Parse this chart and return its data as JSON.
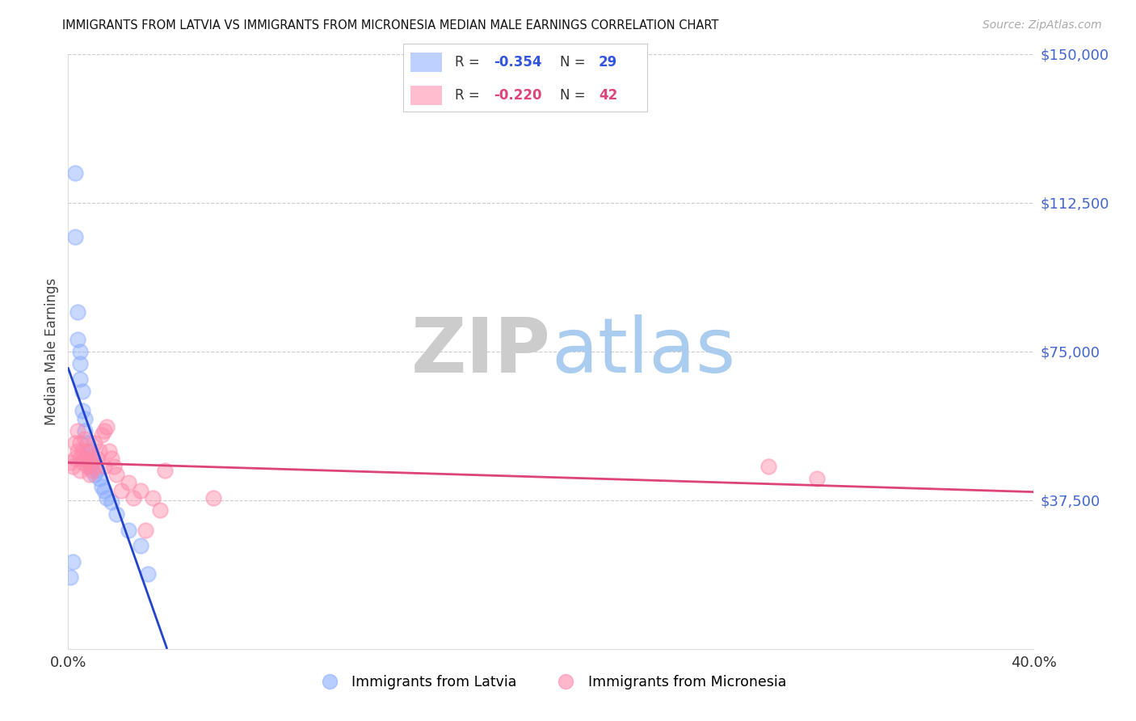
{
  "title": "IMMIGRANTS FROM LATVIA VS IMMIGRANTS FROM MICRONESIA MEDIAN MALE EARNINGS CORRELATION CHART",
  "source": "Source: ZipAtlas.com",
  "ylabel": "Median Male Earnings",
  "xlim": [
    0,
    0.4
  ],
  "ylim": [
    0,
    150000
  ],
  "color_latvia": "#88aaff",
  "color_micronesia": "#ff88aa",
  "color_latvia_line": "#2244cc",
  "color_micronesia_line": "#dd4477",
  "color_dash": "#bbccdd",
  "legend_label1": "Immigrants from Latvia",
  "legend_label2": "Immigrants from Micronesia",
  "r_latvia": "-0.354",
  "n_latvia": "29",
  "r_micro": "-0.220",
  "n_micro": "42",
  "background_color": "#ffffff",
  "latvia_x": [
    0.001,
    0.002,
    0.003,
    0.003,
    0.004,
    0.004,
    0.005,
    0.005,
    0.005,
    0.006,
    0.006,
    0.007,
    0.007,
    0.008,
    0.008,
    0.009,
    0.009,
    0.01,
    0.011,
    0.012,
    0.013,
    0.014,
    0.015,
    0.016,
    0.018,
    0.02,
    0.025,
    0.03,
    0.033
  ],
  "latvia_y": [
    18000,
    22000,
    120000,
    104000,
    85000,
    78000,
    75000,
    72000,
    68000,
    65000,
    60000,
    58000,
    55000,
    52000,
    48000,
    50000,
    46000,
    47000,
    44000,
    45000,
    43000,
    41000,
    40000,
    38000,
    37000,
    34000,
    30000,
    26000,
    19000
  ],
  "micronesia_x": [
    0.001,
    0.002,
    0.003,
    0.003,
    0.004,
    0.004,
    0.005,
    0.005,
    0.005,
    0.006,
    0.006,
    0.007,
    0.007,
    0.008,
    0.008,
    0.009,
    0.009,
    0.01,
    0.01,
    0.011,
    0.011,
    0.012,
    0.013,
    0.014,
    0.015,
    0.015,
    0.016,
    0.017,
    0.018,
    0.019,
    0.02,
    0.022,
    0.025,
    0.027,
    0.03,
    0.032,
    0.035,
    0.038,
    0.04,
    0.06,
    0.29,
    0.31
  ],
  "micronesia_y": [
    47000,
    46000,
    52000,
    48000,
    55000,
    50000,
    52000,
    48000,
    45000,
    50000,
    47000,
    53000,
    48000,
    46000,
    50000,
    47000,
    44000,
    48000,
    45000,
    52000,
    46000,
    48000,
    50000,
    54000,
    55000,
    46000,
    56000,
    50000,
    48000,
    46000,
    44000,
    40000,
    42000,
    38000,
    40000,
    30000,
    38000,
    35000,
    45000,
    38000,
    46000,
    43000
  ]
}
